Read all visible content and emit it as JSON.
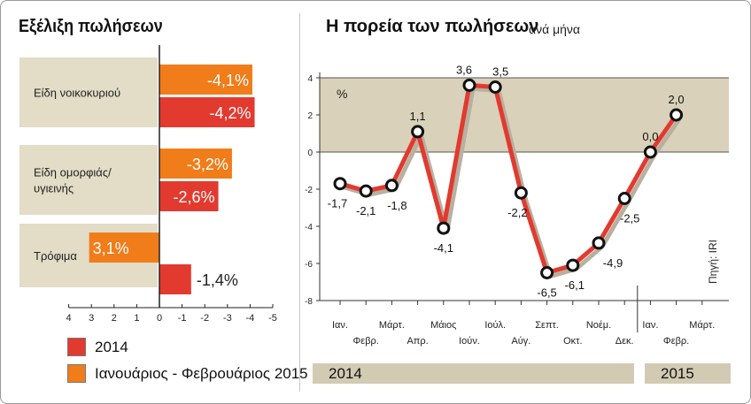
{
  "chart_data": [
    {
      "type": "bar",
      "orientation": "horizontal",
      "title": "Εξέλιξη πωλήσεων",
      "categories": [
        "Είδη νοικοκυριού",
        "Είδη ομορφιάς/ υγιεινής",
        "Τρόφιμα"
      ],
      "category_lines": [
        [
          "Είδη νοικοκυριού"
        ],
        [
          "Είδη ομορφιάς/",
          "υγιεινής"
        ],
        [
          "Τρόφιμα"
        ]
      ],
      "series": [
        {
          "name": "Ιανουάριος - Φεβρουάριος 2015",
          "color": "#f07d1a",
          "values": [
            -4.1,
            -3.2,
            3.1
          ],
          "labels": [
            "-4,1%",
            "-3,2%",
            "3,1%"
          ]
        },
        {
          "name": "2014",
          "color": "#e23a2f",
          "values": [
            -4.2,
            -2.6,
            -1.4
          ],
          "labels": [
            "-4,2%",
            "-2,6%",
            "-1,4%"
          ]
        }
      ],
      "x_axis_reversed": true,
      "xlim": [
        4,
        -5
      ],
      "xticks": [
        "4",
        "3",
        "2",
        "1",
        "0",
        "-1",
        "-2",
        "-3",
        "-4",
        "-5"
      ],
      "band_color": "#e3dcc6"
    },
    {
      "type": "line",
      "title": "Η πορεία των πωλήσεων",
      "subtitle": "ανά μήνα",
      "ylabel": "%",
      "ylim": [
        -8,
        4
      ],
      "yticks": [
        "4",
        "2",
        "0",
        "-2",
        "-4",
        "-6",
        "-8"
      ],
      "x_upper": [
        "Ιαν.",
        "Μάρτ.",
        "Μάιος",
        "Ιούλ.",
        "Σεπτ.",
        "Νοέμ.",
        "Ιαν.",
        "Μάρτ."
      ],
      "x_lower": [
        "Φεβρ.",
        "Απρ.",
        "Ιούν.",
        "Αύγ.",
        "Οκτ.",
        "Δεκ.",
        "Φεβρ."
      ],
      "x": [
        "Ιαν. 2014",
        "Φεβρ. 2014",
        "Μάρτ. 2014",
        "Απρ. 2014",
        "Μάιος 2014",
        "Ιούν. 2014",
        "Ιούλ. 2014",
        "Αύγ. 2014",
        "Σεπτ. 2014",
        "Οκτ. 2014",
        "Νοέμ. 2014",
        "Δεκ. 2014",
        "Ιαν. 2015",
        "Φεβρ. 2015"
      ],
      "series": [
        {
          "color": "#e23a2f",
          "values": [
            -1.7,
            -2.1,
            -1.8,
            1.1,
            -4.1,
            3.6,
            3.5,
            -2.2,
            -6.5,
            -6.1,
            -4.9,
            -2.5,
            0.0,
            2.0
          ],
          "labels": [
            "-1,7",
            "-2,1",
            "-1,8",
            "1,1",
            "-4,1",
            "3,6",
            "3,5",
            "-2,2",
            "-6,5",
            "-6,1",
            "-4,9",
            "-2,5",
            "0,0",
            "2,0"
          ]
        }
      ],
      "year_labels": [
        "2014",
        "2015"
      ],
      "source": "Πηγή: IRI",
      "band_color": "#d9d1b9"
    }
  ],
  "legend": {
    "item_2014": "2014",
    "item_2015": "Ιανουάριος - Φεβρουάριος 2015",
    "color_2014": "#e23a2f",
    "color_2015": "#f07d1a"
  }
}
